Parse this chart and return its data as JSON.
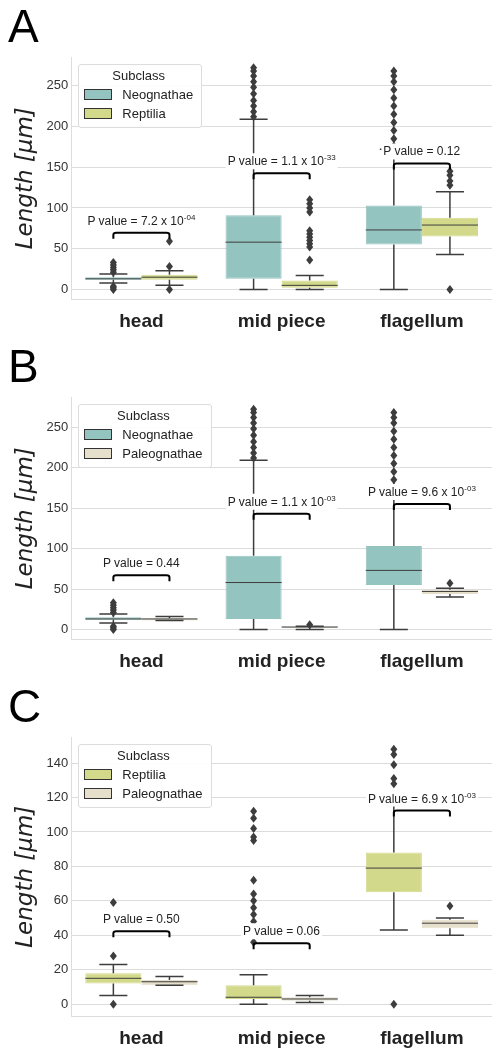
{
  "chart_data": [
    {
      "type": "box",
      "title": "A",
      "ylabel": "Length [µm]",
      "categories": [
        "head",
        "mid piece",
        "flagellum"
      ],
      "legend_title": "Subclass",
      "legend": "top left",
      "grid": "y",
      "ylim": [
        -12,
        285
      ],
      "yticks": [
        0,
        50,
        100,
        150,
        200,
        250
      ],
      "series": [
        {
          "name": "Neognathae",
          "color": "#94c4c0",
          "boxes": [
            {
              "low": 8,
              "q1": 12,
              "median": 13,
              "q3": 15,
              "high": 19,
              "outliers": [
                0,
                2,
                4,
                21,
                24,
                27,
                30,
                33
              ]
            },
            {
              "low": 0,
              "q1": 13,
              "median": 58,
              "q3": 91,
              "high": 209,
              "outliers": [
                212,
                218,
                225,
                232,
                240,
                248,
                255,
                262,
                268,
                272
              ]
            },
            {
              "low": 0,
              "q1": 55,
              "median": 73,
              "q3": 103,
              "high": 172,
              "outliers": [
                176,
                185,
                195,
                205,
                215,
                225,
                235,
                245,
                255,
                262,
                268
              ]
            }
          ]
        },
        {
          "name": "Reptilia",
          "color": "#d3d98a",
          "boxes": [
            {
              "low": 5,
              "q1": 12,
              "median": 15,
              "q3": 18,
              "high": 23,
              "outliers": [
                0,
                28,
                59
              ]
            },
            {
              "low": 0,
              "q1": 2,
              "median": 5,
              "q3": 11,
              "high": 17,
              "outliers": [
                36,
                52,
                56,
                60,
                64,
                68,
                72,
                95,
                100,
                105,
                110
              ]
            },
            {
              "low": 43,
              "q1": 65,
              "median": 79,
              "q3": 88,
              "high": 120,
              "outliers": [
                0,
                128,
                133,
                140,
                145
              ]
            }
          ]
        }
      ],
      "annotations": [
        "P value = 7.2 x 10$^{-04}$",
        "P value = 1.1 x 10$^{-33}$",
        "P value = 0.12"
      ]
    },
    {
      "type": "box",
      "title": "B",
      "ylabel": "Length [µm]",
      "categories": [
        "head",
        "mid piece",
        "flagellum"
      ],
      "legend_title": "Subclass",
      "legend": "top left",
      "grid": "y",
      "ylim": [
        -12,
        287
      ],
      "yticks": [
        0,
        50,
        100,
        150,
        200,
        250
      ],
      "series": [
        {
          "name": "Neognathae",
          "color": "#94c4c0",
          "boxes": [
            {
              "low": 8,
              "q1": 12,
              "median": 13,
              "q3": 15,
              "high": 19,
              "outliers": [
                0,
                2,
                4,
                21,
                24,
                27,
                30,
                33
              ]
            },
            {
              "low": 0,
              "q1": 13,
              "median": 58,
              "q3": 91,
              "high": 209,
              "outliers": [
                212,
                218,
                225,
                232,
                240,
                248,
                255,
                262,
                268,
                272
              ]
            },
            {
              "low": 0,
              "q1": 55,
              "median": 73,
              "q3": 103,
              "high": 172,
              "outliers": [
                176,
                185,
                195,
                205,
                215,
                225,
                235,
                245,
                255,
                262,
                268
              ]
            }
          ]
        },
        {
          "name": "Paleognathae",
          "color": "#e5dfcc",
          "boxes": [
            {
              "low": 11,
              "q1": 11,
              "median": 13,
              "q3": 14,
              "high": 16
            },
            {
              "low": 0,
              "q1": 2,
              "median": 3,
              "q3": 4,
              "high": 4,
              "outliers": [
                6
              ]
            },
            {
              "low": 40,
              "q1": 44,
              "median": 47,
              "q3": 49,
              "high": 51,
              "outliers": [
                57
              ]
            }
          ]
        }
      ],
      "annotations": [
        "P value = 0.44",
        "P value = 1.1 x 10$^{-03}$",
        "P value = 9.6 x 10$^{-03}$"
      ]
    },
    {
      "type": "box",
      "title": "C",
      "ylabel": "Length [µm]",
      "categories": [
        "head",
        "mid piece",
        "flagellum"
      ],
      "legend_title": "Subclass",
      "legend": "top left",
      "grid": "y",
      "ylim": [
        -7,
        155
      ],
      "yticks": [
        0,
        20,
        40,
        60,
        80,
        100,
        120,
        140
      ],
      "series": [
        {
          "name": "Reptilia",
          "color": "#d3d98a",
          "boxes": [
            {
              "low": 5,
              "q1": 12,
              "median": 15,
              "q3": 18,
              "high": 23,
              "outliers": [
                0,
                28,
                59
              ]
            },
            {
              "low": 0,
              "q1": 3,
              "median": 4,
              "q3": 11,
              "high": 17,
              "outliers": [
                36,
                48,
                52,
                56,
                60,
                64,
                72,
                95,
                97,
                102,
                108,
                112
              ]
            },
            {
              "low": 43,
              "q1": 65,
              "median": 79,
              "q3": 88,
              "high": 120,
              "outliers": [
                0,
                128,
                131,
                139,
                145,
                148
              ]
            }
          ]
        },
        {
          "name": "Paleognathae",
          "color": "#e5dfcc",
          "boxes": [
            {
              "low": 11,
              "q1": 11,
              "median": 13,
              "q3": 14,
              "high": 16
            },
            {
              "low": 1,
              "q1": 2,
              "median": 3,
              "q3": 4,
              "high": 5
            },
            {
              "low": 40,
              "q1": 44,
              "median": 47,
              "q3": 49,
              "high": 50,
              "outliers": [
                57
              ]
            }
          ]
        }
      ],
      "annotations": [
        "P value = 0.50",
        "P value = 0.06",
        "P value = 6.9 x 10$^{-03}$"
      ]
    }
  ]
}
